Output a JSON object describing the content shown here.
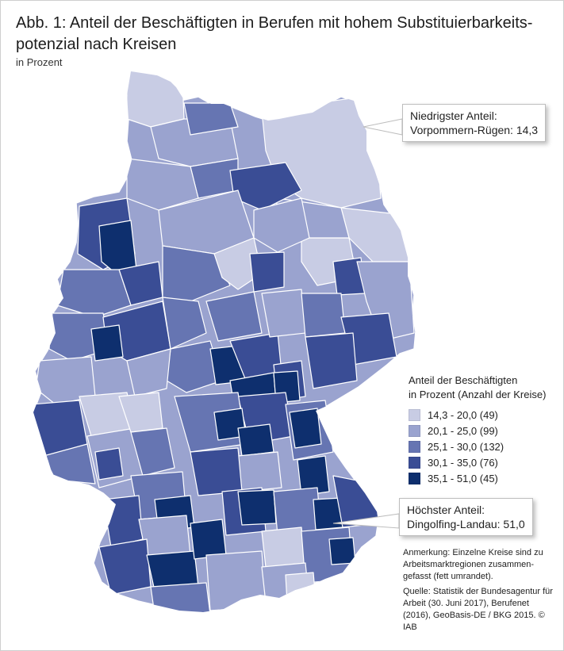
{
  "figure": {
    "title": "Abb. 1: Anteil der Beschäftigten in Berufen mit hohem Substituierbarkeits-potenzial nach Kreisen",
    "subtitle": "in Prozent"
  },
  "callouts": {
    "lowest_label": "Niedrigster Anteil:",
    "lowest_value": "Vorpommern-Rügen: 14,3",
    "highest_label": "Höchster Anteil:",
    "highest_value": "Dingolfing-Landau: 51,0"
  },
  "legend": {
    "title_line1": "Anteil der Beschäftigten",
    "title_line2": "in Prozent (Anzahl der Kreise)",
    "classes": [
      {
        "label": "14,3 - 20,0 (49)",
        "color": "#c8cce4"
      },
      {
        "label": "20,1 - 25,0 (99)",
        "color": "#9aa3cf"
      },
      {
        "label": "25,1 - 30,0 (132)",
        "color": "#6675b2"
      },
      {
        "label": "30,1 - 35,0 (76)",
        "color": "#3a4d95"
      },
      {
        "label": "35,1 - 51,0 (45)",
        "color": "#0e2f6e"
      }
    ]
  },
  "notes": {
    "remark": "Anmerkung: Einzelne Kreise sind zu Arbeitsmarktregionen zusammen-gefasst (fett umrandet).",
    "source": "Quelle: Statistik der Bundesagentur für Arbeit (30. Juni 2017), Berufenet (2016), GeoBasis-DE / BKG 2015. © IAB"
  },
  "colors": {
    "class1": "#c8cce4",
    "class2": "#9aa3cf",
    "class3": "#6675b2",
    "class4": "#3a4d95",
    "class5": "#0e2f6e",
    "border_region": "#ffffff"
  }
}
